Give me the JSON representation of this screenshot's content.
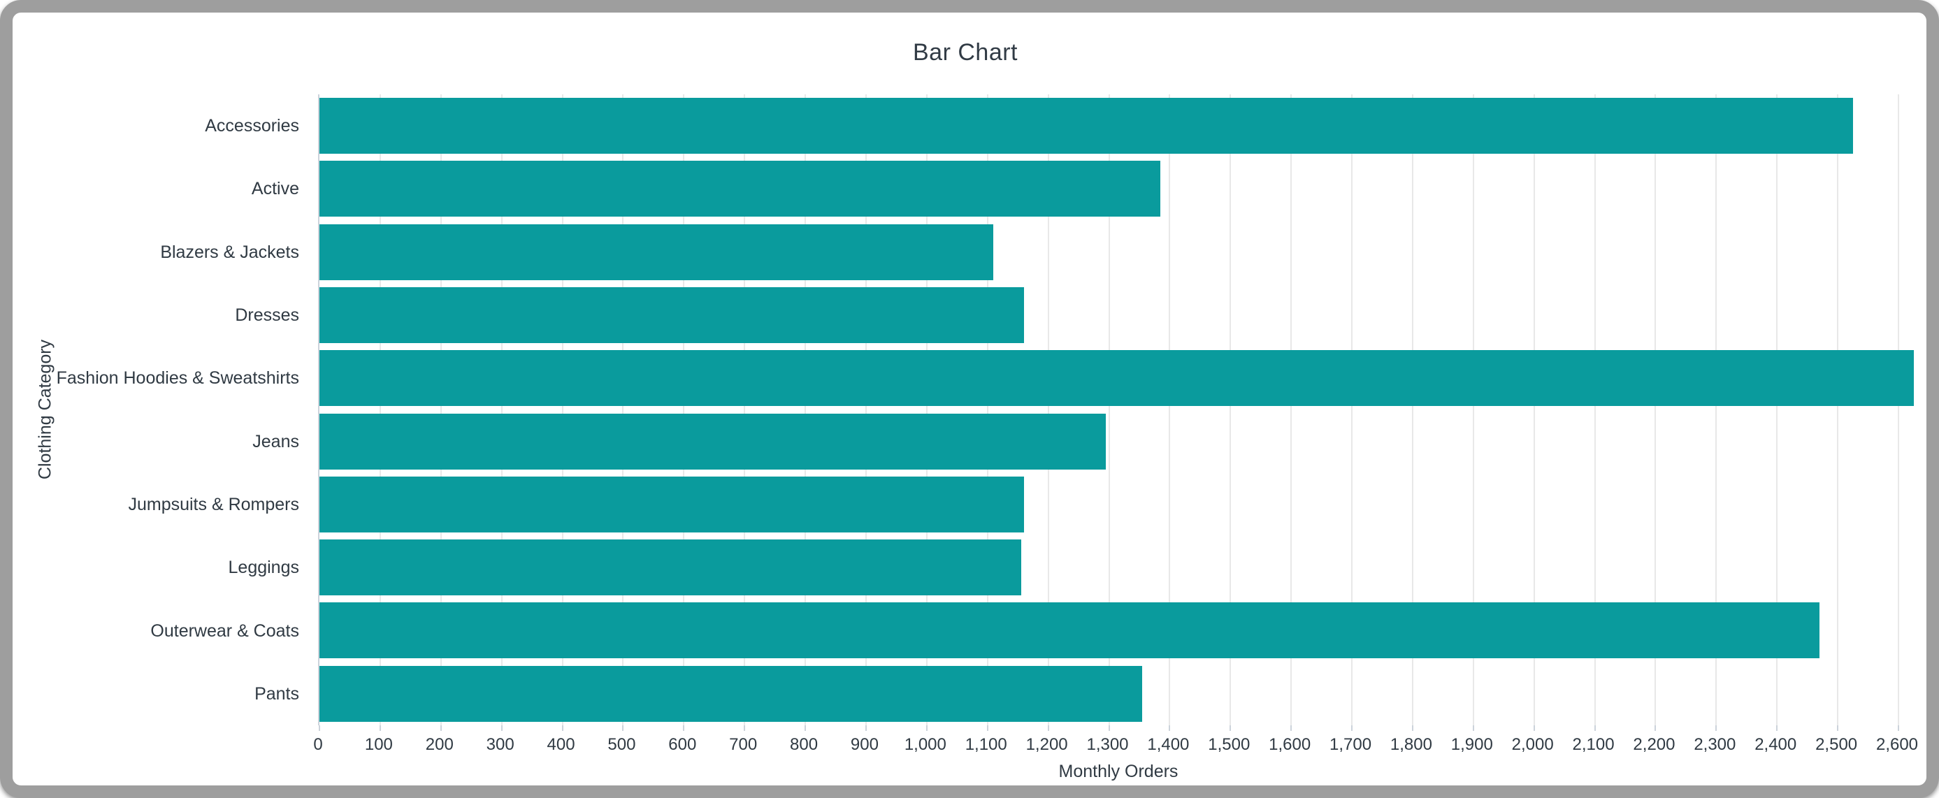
{
  "window": {
    "frame_color": "#9e9e9e",
    "background_color": "#ffffff"
  },
  "chart_data": {
    "type": "bar",
    "orientation": "horizontal",
    "title": "Bar Chart",
    "xlabel": "Monthly Orders",
    "ylabel": "Clothing Category",
    "categories": [
      "Accessories",
      "Active",
      "Blazers & Jackets",
      "Dresses",
      "Fashion Hoodies & Sweatshirts",
      "Jeans",
      "Jumpsuits & Rompers",
      "Leggings",
      "Outerwear & Coats",
      "Pants"
    ],
    "values": [
      2525,
      1385,
      1110,
      1160,
      2625,
      1295,
      1160,
      1155,
      2470,
      1355
    ],
    "xlim": [
      0,
      2600
    ],
    "xtick_step": 100,
    "xtick_values": [
      0,
      100,
      200,
      300,
      400,
      500,
      600,
      700,
      800,
      900,
      1000,
      1100,
      1200,
      1300,
      1400,
      1500,
      1600,
      1700,
      1800,
      1900,
      2000,
      2100,
      2200,
      2300,
      2400,
      2500,
      2600
    ],
    "xtick_labels": [
      "0",
      "100",
      "200",
      "300",
      "400",
      "500",
      "600",
      "700",
      "800",
      "900",
      "1,000",
      "1,100",
      "1,200",
      "1,300",
      "1,400",
      "1,500",
      "1,600",
      "1,700",
      "1,800",
      "1,900",
      "2,000",
      "2,100",
      "2,200",
      "2,300",
      "2,400",
      "2,500",
      "2,600"
    ],
    "grid": "vertical",
    "legend": "none",
    "bar_color": "#0a9b9d",
    "text_color": "#303a43",
    "grid_color": "#e8e8e8",
    "axis_line_color": "#ccd3db"
  }
}
